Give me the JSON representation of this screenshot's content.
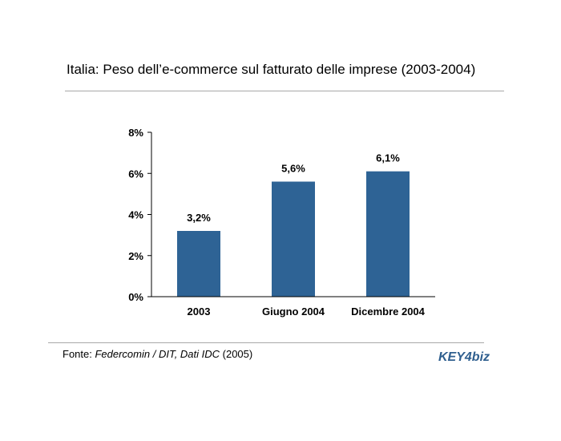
{
  "title": "Italia: Peso dell’e-commerce sul fatturato delle imprese (2003-2004)",
  "source": {
    "prefix": "Fonte: ",
    "italic": "Federcomin / DIT, Dati IDC",
    "suffix": " (2005)"
  },
  "logo": {
    "text": "KEY4biz",
    "color": "#2f5f8f"
  },
  "chart_data": {
    "type": "bar",
    "categories": [
      "2003",
      "Giugno 2004",
      "Dicembre 2004"
    ],
    "values": [
      3.2,
      5.6,
      6.1
    ],
    "data_labels": [
      "3,2%",
      "5,6%",
      "6,1%"
    ],
    "yticks": [
      0,
      2,
      4,
      6,
      8
    ],
    "ytick_labels": [
      "0%",
      "2%",
      "4%",
      "6%",
      "8%"
    ],
    "ylim": [
      0,
      8
    ],
    "bar_color": "#2e6395",
    "grid": false,
    "legend": "none"
  }
}
